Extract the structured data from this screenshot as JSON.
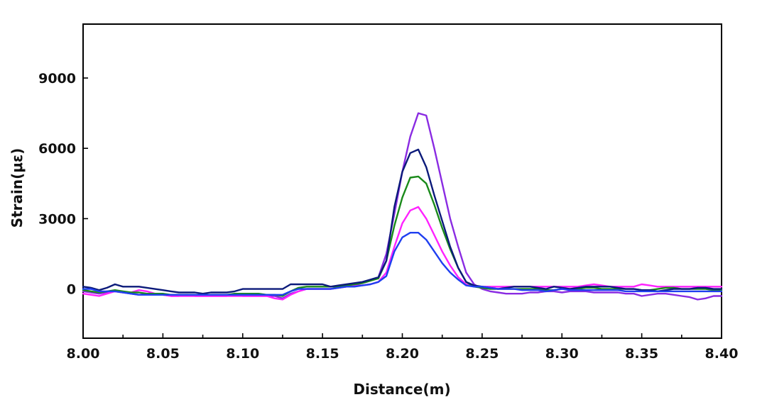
{
  "chart_data": {
    "type": "line",
    "xlabel": "Distance(m)",
    "ylabel": "Strain(με)",
    "xlim": [
      8.0,
      8.4
    ],
    "ylim": [
      -2100,
      11300
    ],
    "x_ticks": [
      "8.00",
      "8.05",
      "8.10",
      "8.15",
      "8.20",
      "8.25",
      "8.30",
      "8.35",
      "8.40"
    ],
    "y_ticks": [
      "0",
      "3000",
      "6000",
      "9000"
    ],
    "grid": false,
    "legend": "none",
    "x": [
      8.0,
      8.005,
      8.01,
      8.015,
      8.02,
      8.025,
      8.03,
      8.035,
      8.04,
      8.045,
      8.05,
      8.055,
      8.06,
      8.065,
      8.07,
      8.075,
      8.08,
      8.085,
      8.09,
      8.095,
      8.1,
      8.105,
      8.11,
      8.115,
      8.12,
      8.125,
      8.13,
      8.135,
      8.14,
      8.145,
      8.15,
      8.155,
      8.16,
      8.165,
      8.17,
      8.175,
      8.18,
      8.185,
      8.19,
      8.195,
      8.2,
      8.205,
      8.21,
      8.215,
      8.22,
      8.225,
      8.23,
      8.235,
      8.24,
      8.245,
      8.25,
      8.255,
      8.26,
      8.265,
      8.27,
      8.275,
      8.28,
      8.285,
      8.29,
      8.295,
      8.3,
      8.305,
      8.31,
      8.315,
      8.32,
      8.325,
      8.33,
      8.335,
      8.34,
      8.345,
      8.35,
      8.355,
      8.36,
      8.365,
      8.37,
      8.375,
      8.38,
      8.385,
      8.39,
      8.395,
      8.4
    ],
    "series": [
      {
        "color": "#8a2be2",
        "values": [
          -100,
          -150,
          -200,
          -150,
          -100,
          -150,
          -200,
          -250,
          -200,
          -200,
          -250,
          -300,
          -300,
          -250,
          -300,
          -300,
          -300,
          -300,
          -300,
          -250,
          -300,
          -300,
          -300,
          -300,
          -300,
          -400,
          -200,
          -100,
          0,
          0,
          0,
          0,
          50,
          100,
          150,
          250,
          350,
          500,
          1500,
          3200,
          5000,
          6500,
          7500,
          7400,
          6000,
          4500,
          3000,
          1800,
          700,
          200,
          0,
          -100,
          -150,
          -200,
          -200,
          -200,
          -150,
          -150,
          -100,
          -100,
          -150,
          -100,
          -100,
          -100,
          -150,
          -150,
          -150,
          -150,
          -200,
          -200,
          -300,
          -250,
          -200,
          -200,
          -250,
          -300,
          -350,
          -450,
          -400,
          -300,
          -300
        ],
        "width": 2.4
      },
      {
        "color": "#ff22ff",
        "values": [
          -200,
          -250,
          -300,
          -200,
          -100,
          -150,
          -150,
          -50,
          -100,
          -200,
          -250,
          -300,
          -300,
          -300,
          -300,
          -300,
          -300,
          -300,
          -300,
          -300,
          -300,
          -300,
          -300,
          -300,
          -400,
          -450,
          -250,
          -100,
          0,
          0,
          0,
          0,
          50,
          100,
          120,
          150,
          200,
          300,
          700,
          1800,
          2800,
          3350,
          3500,
          3000,
          2300,
          1600,
          1000,
          500,
          200,
          100,
          100,
          100,
          100,
          100,
          100,
          100,
          100,
          100,
          100,
          100,
          100,
          100,
          100,
          150,
          200,
          150,
          100,
          100,
          100,
          100,
          200,
          150,
          100,
          100,
          100,
          100,
          100,
          100,
          100,
          100,
          100
        ],
        "width": 2.2
      },
      {
        "color": "#1a8a1a",
        "values": [
          -50,
          -100,
          -150,
          -100,
          -50,
          -100,
          -150,
          -150,
          -200,
          -200,
          -200,
          -250,
          -250,
          -250,
          -250,
          -250,
          -250,
          -250,
          -250,
          -200,
          -200,
          -200,
          -200,
          -250,
          -250,
          -300,
          -100,
          50,
          100,
          100,
          100,
          100,
          100,
          150,
          200,
          250,
          350,
          450,
          1200,
          2700,
          3900,
          4750,
          4800,
          4500,
          3600,
          2600,
          1700,
          900,
          300,
          100,
          50,
          0,
          0,
          0,
          0,
          0,
          0,
          0,
          -50,
          -50,
          0,
          0,
          0,
          50,
          50,
          0,
          0,
          0,
          0,
          0,
          -50,
          -50,
          0,
          50,
          50,
          0,
          0,
          0,
          0,
          -50,
          -50
        ],
        "width": 2.4
      },
      {
        "color": "#0b1a7a",
        "values": [
          100,
          50,
          -50,
          50,
          200,
          100,
          100,
          100,
          50,
          0,
          -50,
          -100,
          -150,
          -150,
          -150,
          -200,
          -150,
          -150,
          -150,
          -100,
          0,
          0,
          0,
          0,
          0,
          0,
          200,
          200,
          200,
          200,
          200,
          100,
          150,
          200,
          250,
          300,
          400,
          500,
          1200,
          3500,
          5000,
          5800,
          5950,
          5200,
          4000,
          2900,
          1800,
          900,
          300,
          150,
          100,
          50,
          0,
          50,
          100,
          100,
          100,
          50,
          0,
          100,
          50,
          0,
          50,
          100,
          100,
          100,
          100,
          50,
          0,
          0,
          -50,
          -50,
          -100,
          -50,
          0,
          0,
          0,
          50,
          50,
          0,
          0
        ],
        "width": 2.4
      },
      {
        "color": "#1f3ff0",
        "values": [
          0,
          0,
          -100,
          -100,
          -100,
          -150,
          -200,
          -250,
          -250,
          -250,
          -250,
          -250,
          -250,
          -250,
          -250,
          -250,
          -250,
          -250,
          -250,
          -250,
          -250,
          -250,
          -250,
          -250,
          -250,
          -250,
          -100,
          0,
          0,
          0,
          0,
          0,
          50,
          100,
          100,
          150,
          200,
          300,
          550,
          1600,
          2200,
          2400,
          2400,
          2100,
          1600,
          1100,
          700,
          400,
          150,
          100,
          100,
          50,
          0,
          0,
          0,
          -50,
          -50,
          -50,
          -100,
          -50,
          0,
          -50,
          -50,
          -50,
          -50,
          -50,
          -50,
          -50,
          -100,
          -100,
          -100,
          -100,
          -100,
          -100,
          -100,
          -100,
          -100,
          -100,
          -100,
          -100,
          -100
        ],
        "width": 2.4
      }
    ]
  }
}
